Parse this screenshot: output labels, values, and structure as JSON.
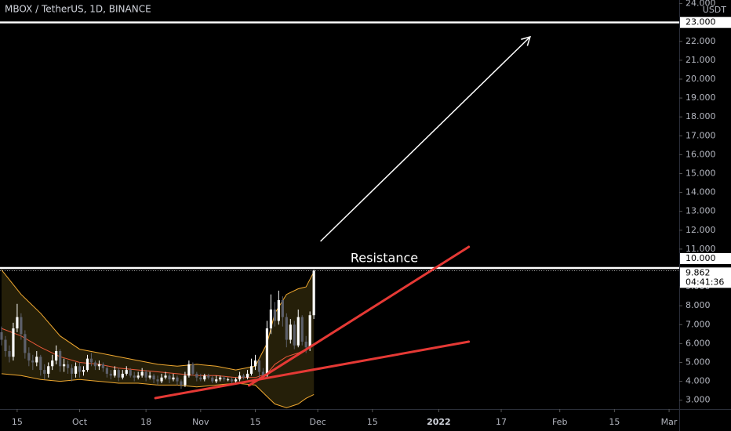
{
  "chart_data": {
    "type": "candlestick",
    "title": "MBOX / TetherUS, 1D, BINANCE",
    "currency": "USDT",
    "xlim": [
      9.6,
      183.6
    ],
    "ylim": [
      2.53,
      24.19
    ],
    "xticks": [
      {
        "value": 14,
        "label": "15"
      },
      {
        "value": 30,
        "label": "Oct"
      },
      {
        "value": 47,
        "label": "18"
      },
      {
        "value": 61,
        "label": "Nov"
      },
      {
        "value": 75,
        "label": "15"
      },
      {
        "value": 91,
        "label": "Dec"
      },
      {
        "value": 105,
        "label": "15"
      },
      {
        "value": 122,
        "label": "2022"
      },
      {
        "value": 138,
        "label": "17"
      },
      {
        "value": 153,
        "label": "Feb"
      },
      {
        "value": 167,
        "label": "15"
      },
      {
        "value": 181,
        "label": "Mar"
      }
    ],
    "yticks": [
      {
        "value": 3,
        "label": "3.000"
      },
      {
        "value": 4,
        "label": "4.000"
      },
      {
        "value": 5,
        "label": "5.000"
      },
      {
        "value": 6,
        "label": "6.000"
      },
      {
        "value": 7,
        "label": "7.000"
      },
      {
        "value": 8,
        "label": "8.000"
      },
      {
        "value": 9,
        "label": "9.000"
      },
      {
        "value": 11,
        "label": "11.000"
      },
      {
        "value": 12,
        "label": "12.000"
      },
      {
        "value": 13,
        "label": "13.000"
      },
      {
        "value": 14,
        "label": "14.000"
      },
      {
        "value": 15,
        "label": "15.000"
      },
      {
        "value": 16,
        "label": "16.000"
      },
      {
        "value": 17,
        "label": "17.000"
      },
      {
        "value": 18,
        "label": "18.000"
      },
      {
        "value": 19,
        "label": "19.000"
      },
      {
        "value": 20,
        "label": "20.000"
      },
      {
        "value": 21,
        "label": "21.000"
      },
      {
        "value": 22,
        "label": "22.000"
      },
      {
        "value": 24,
        "label": "24.000"
      }
    ],
    "up_color": "#ffffff",
    "down_color": "#5d606b",
    "x": [
      10,
      11,
      12,
      13,
      14,
      15,
      16,
      17,
      18,
      19,
      20,
      21,
      22,
      23,
      24,
      25,
      26,
      27,
      28,
      29,
      30,
      31,
      32,
      33,
      34,
      35,
      36,
      37,
      38,
      39,
      40,
      41,
      42,
      43,
      44,
      45,
      46,
      47,
      48,
      49,
      50,
      51,
      52,
      53,
      54,
      55,
      56,
      57,
      58,
      59,
      60,
      61,
      62,
      63,
      64,
      65,
      66,
      67,
      68,
      69,
      70,
      71,
      72,
      73,
      74,
      75,
      76,
      77,
      78,
      79,
      80,
      81,
      82,
      83,
      84,
      85,
      86,
      87,
      88,
      89,
      90
    ],
    "open": [
      6.6,
      6.2,
      5.6,
      5.3,
      6.8,
      7.4,
      6.5,
      5.5,
      5.1,
      5.0,
      5.3,
      4.6,
      4.4,
      4.8,
      5.1,
      5.6,
      4.8,
      4.9,
      4.7,
      4.4,
      4.8,
      4.5,
      4.6,
      5.2,
      5.0,
      4.8,
      4.9,
      4.7,
      4.4,
      4.3,
      4.6,
      4.2,
      4.4,
      4.6,
      4.3,
      4.2,
      4.3,
      4.5,
      4.2,
      4.3,
      4.1,
      4.0,
      4.2,
      4.3,
      4.1,
      4.2,
      4.0,
      3.8,
      4.3,
      4.9,
      4.4,
      4.2,
      4.1,
      4.3,
      4.2,
      4.0,
      4.1,
      4.2,
      4.1,
      4.1,
      4.0,
      4.1,
      4.3,
      4.2,
      4.4,
      4.8,
      5.1,
      4.5,
      4.3,
      6.8,
      7.8,
      7.2,
      8.3,
      7.4,
      6.2,
      7.0,
      5.9,
      7.4,
      6.1,
      5.8,
      7.5
    ],
    "high": [
      6.9,
      6.4,
      5.9,
      7.1,
      8.1,
      7.6,
      6.7,
      5.8,
      5.4,
      5.6,
      5.4,
      4.9,
      5.0,
      5.4,
      5.9,
      5.7,
      5.2,
      5.1,
      4.9,
      5.0,
      5.0,
      4.8,
      5.4,
      5.5,
      5.1,
      5.1,
      5.0,
      4.8,
      4.6,
      4.8,
      4.7,
      4.6,
      4.8,
      4.7,
      4.5,
      4.5,
      4.7,
      4.6,
      4.5,
      4.4,
      4.3,
      4.4,
      4.5,
      4.4,
      4.4,
      4.3,
      4.1,
      4.5,
      5.1,
      5.0,
      4.5,
      4.4,
      4.4,
      4.4,
      4.3,
      4.3,
      4.3,
      4.3,
      4.2,
      4.2,
      4.2,
      4.5,
      4.4,
      4.6,
      5.2,
      5.4,
      5.2,
      4.7,
      7.2,
      8.6,
      8.2,
      8.8,
      8.5,
      7.6,
      7.3,
      7.2,
      7.8,
      7.5,
      6.4,
      7.7,
      9.9
    ],
    "low": [
      5.9,
      5.3,
      5.0,
      5.1,
      6.6,
      6.2,
      5.2,
      4.8,
      4.6,
      4.8,
      4.3,
      4.1,
      4.2,
      4.6,
      4.9,
      4.5,
      4.5,
      4.4,
      4.0,
      4.2,
      4.2,
      4.3,
      4.5,
      4.8,
      4.6,
      4.6,
      4.5,
      4.2,
      4.1,
      4.2,
      4.0,
      4.1,
      4.3,
      4.2,
      4.0,
      4.1,
      4.2,
      4.0,
      4.1,
      3.9,
      3.8,
      3.9,
      4.1,
      3.9,
      4.0,
      3.8,
      3.6,
      3.7,
      4.2,
      4.3,
      4.0,
      4.0,
      4.0,
      4.1,
      3.9,
      3.9,
      4.0,
      4.0,
      4.0,
      3.9,
      3.9,
      4.0,
      4.1,
      4.1,
      4.3,
      4.6,
      4.2,
      4.1,
      4.2,
      6.5,
      6.9,
      7.0,
      6.9,
      5.8,
      6.0,
      5.7,
      5.8,
      5.9,
      5.5,
      5.6,
      7.3
    ],
    "close": [
      6.2,
      5.6,
      5.3,
      6.8,
      7.4,
      6.5,
      5.5,
      5.1,
      5.0,
      5.3,
      4.6,
      4.4,
      4.8,
      5.1,
      5.6,
      4.8,
      4.9,
      4.7,
      4.4,
      4.8,
      4.5,
      4.6,
      5.2,
      5.0,
      4.8,
      4.9,
      4.7,
      4.4,
      4.3,
      4.6,
      4.2,
      4.4,
      4.6,
      4.3,
      4.2,
      4.3,
      4.5,
      4.2,
      4.3,
      4.1,
      4.0,
      4.2,
      4.3,
      4.1,
      4.2,
      4.0,
      3.8,
      4.3,
      4.9,
      4.4,
      4.2,
      4.1,
      4.3,
      4.2,
      4.0,
      4.1,
      4.2,
      4.1,
      4.1,
      4.0,
      4.1,
      4.3,
      4.2,
      4.4,
      4.8,
      5.1,
      4.5,
      4.3,
      6.8,
      7.8,
      7.2,
      8.3,
      7.4,
      6.2,
      7.0,
      5.9,
      7.4,
      6.1,
      5.8,
      7.5,
      9.862
    ],
    "bands": {
      "x": [
        10,
        15,
        20,
        25,
        30,
        35,
        40,
        45,
        50,
        55,
        60,
        65,
        70,
        75,
        78,
        80,
        83,
        86,
        88,
        90
      ],
      "upper": [
        9.9,
        8.6,
        7.6,
        6.4,
        5.7,
        5.5,
        5.3,
        5.1,
        4.9,
        4.8,
        4.9,
        4.8,
        4.6,
        4.8,
        6.0,
        7.6,
        8.6,
        8.9,
        9.0,
        9.8
      ],
      "middle": [
        6.8,
        6.4,
        5.8,
        5.3,
        5.0,
        4.9,
        4.7,
        4.6,
        4.5,
        4.4,
        4.3,
        4.3,
        4.2,
        4.2,
        4.4,
        4.9,
        5.3,
        5.5,
        5.7,
        5.9
      ],
      "lower": [
        4.4,
        4.3,
        4.1,
        4.0,
        4.1,
        4.0,
        3.9,
        3.9,
        3.8,
        3.8,
        3.7,
        3.8,
        3.9,
        3.8,
        3.2,
        2.8,
        2.6,
        2.8,
        3.1,
        3.3
      ],
      "band_color": "#f0a830",
      "middle_color": "#e8583a",
      "fill": "#6b5a1a"
    },
    "price_lines": [
      {
        "value": 23,
        "label": "23.000"
      },
      {
        "value": 10,
        "label": "10.000"
      }
    ],
    "last_price": 9.862,
    "countdown": "04:41:36",
    "annotation": "Resistance",
    "trend_lines": [
      {
        "color": "#e53935",
        "x": [
          73.4,
          129.7
        ],
        "y": [
          3.78,
          11.12
        ]
      },
      {
        "color": "#e53935",
        "x": [
          49.4,
          129.7
        ],
        "y": [
          3.11,
          6.1
        ]
      }
    ],
    "arrow": {
      "color": "#ffffff",
      "x": [
        91.7,
        145.4
      ],
      "y": [
        11.41,
        22.24
      ]
    }
  }
}
